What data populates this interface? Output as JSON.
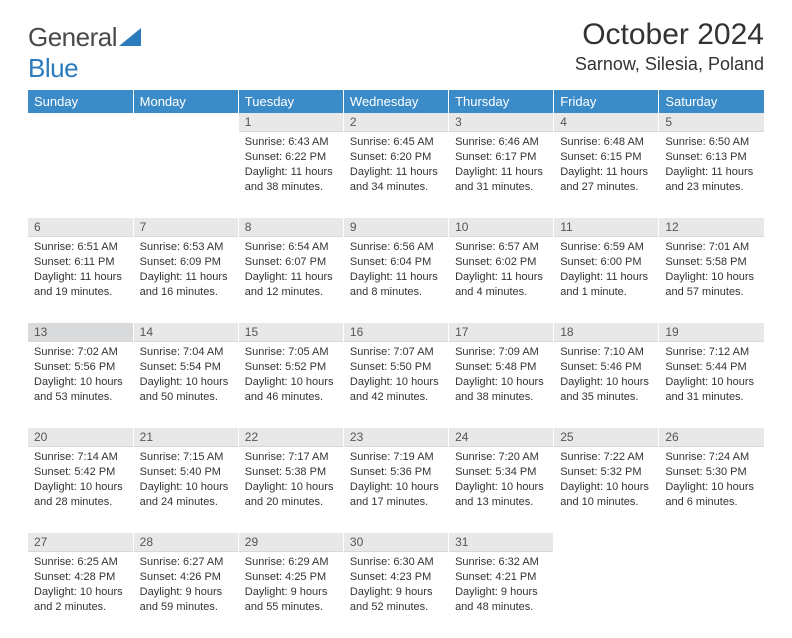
{
  "logo": {
    "part1": "General",
    "part2": "Blue"
  },
  "title": "October 2024",
  "location": "Sarnow, Silesia, Poland",
  "day_headers": [
    "Sunday",
    "Monday",
    "Tuesday",
    "Wednesday",
    "Thursday",
    "Friday",
    "Saturday"
  ],
  "header_bg": "#3b8bc8",
  "daynum_bg": "#e8e8e8",
  "daynum_bg_hl": "#d9dadb",
  "weeks": [
    [
      null,
      null,
      {
        "n": "1",
        "sr": "Sunrise: 6:43 AM",
        "ss": "Sunset: 6:22 PM",
        "dl": "Daylight: 11 hours and 38 minutes."
      },
      {
        "n": "2",
        "sr": "Sunrise: 6:45 AM",
        "ss": "Sunset: 6:20 PM",
        "dl": "Daylight: 11 hours and 34 minutes."
      },
      {
        "n": "3",
        "sr": "Sunrise: 6:46 AM",
        "ss": "Sunset: 6:17 PM",
        "dl": "Daylight: 11 hours and 31 minutes."
      },
      {
        "n": "4",
        "sr": "Sunrise: 6:48 AM",
        "ss": "Sunset: 6:15 PM",
        "dl": "Daylight: 11 hours and 27 minutes."
      },
      {
        "n": "5",
        "sr": "Sunrise: 6:50 AM",
        "ss": "Sunset: 6:13 PM",
        "dl": "Daylight: 11 hours and 23 minutes."
      }
    ],
    [
      {
        "n": "6",
        "sr": "Sunrise: 6:51 AM",
        "ss": "Sunset: 6:11 PM",
        "dl": "Daylight: 11 hours and 19 minutes."
      },
      {
        "n": "7",
        "sr": "Sunrise: 6:53 AM",
        "ss": "Sunset: 6:09 PM",
        "dl": "Daylight: 11 hours and 16 minutes."
      },
      {
        "n": "8",
        "sr": "Sunrise: 6:54 AM",
        "ss": "Sunset: 6:07 PM",
        "dl": "Daylight: 11 hours and 12 minutes."
      },
      {
        "n": "9",
        "sr": "Sunrise: 6:56 AM",
        "ss": "Sunset: 6:04 PM",
        "dl": "Daylight: 11 hours and 8 minutes."
      },
      {
        "n": "10",
        "sr": "Sunrise: 6:57 AM",
        "ss": "Sunset: 6:02 PM",
        "dl": "Daylight: 11 hours and 4 minutes."
      },
      {
        "n": "11",
        "sr": "Sunrise: 6:59 AM",
        "ss": "Sunset: 6:00 PM",
        "dl": "Daylight: 11 hours and 1 minute."
      },
      {
        "n": "12",
        "sr": "Sunrise: 7:01 AM",
        "ss": "Sunset: 5:58 PM",
        "dl": "Daylight: 10 hours and 57 minutes."
      }
    ],
    [
      {
        "n": "13",
        "sr": "Sunrise: 7:02 AM",
        "ss": "Sunset: 5:56 PM",
        "dl": "Daylight: 10 hours and 53 minutes.",
        "hl": true
      },
      {
        "n": "14",
        "sr": "Sunrise: 7:04 AM",
        "ss": "Sunset: 5:54 PM",
        "dl": "Daylight: 10 hours and 50 minutes."
      },
      {
        "n": "15",
        "sr": "Sunrise: 7:05 AM",
        "ss": "Sunset: 5:52 PM",
        "dl": "Daylight: 10 hours and 46 minutes."
      },
      {
        "n": "16",
        "sr": "Sunrise: 7:07 AM",
        "ss": "Sunset: 5:50 PM",
        "dl": "Daylight: 10 hours and 42 minutes."
      },
      {
        "n": "17",
        "sr": "Sunrise: 7:09 AM",
        "ss": "Sunset: 5:48 PM",
        "dl": "Daylight: 10 hours and 38 minutes."
      },
      {
        "n": "18",
        "sr": "Sunrise: 7:10 AM",
        "ss": "Sunset: 5:46 PM",
        "dl": "Daylight: 10 hours and 35 minutes."
      },
      {
        "n": "19",
        "sr": "Sunrise: 7:12 AM",
        "ss": "Sunset: 5:44 PM",
        "dl": "Daylight: 10 hours and 31 minutes."
      }
    ],
    [
      {
        "n": "20",
        "sr": "Sunrise: 7:14 AM",
        "ss": "Sunset: 5:42 PM",
        "dl": "Daylight: 10 hours and 28 minutes."
      },
      {
        "n": "21",
        "sr": "Sunrise: 7:15 AM",
        "ss": "Sunset: 5:40 PM",
        "dl": "Daylight: 10 hours and 24 minutes."
      },
      {
        "n": "22",
        "sr": "Sunrise: 7:17 AM",
        "ss": "Sunset: 5:38 PM",
        "dl": "Daylight: 10 hours and 20 minutes."
      },
      {
        "n": "23",
        "sr": "Sunrise: 7:19 AM",
        "ss": "Sunset: 5:36 PM",
        "dl": "Daylight: 10 hours and 17 minutes."
      },
      {
        "n": "24",
        "sr": "Sunrise: 7:20 AM",
        "ss": "Sunset: 5:34 PM",
        "dl": "Daylight: 10 hours and 13 minutes."
      },
      {
        "n": "25",
        "sr": "Sunrise: 7:22 AM",
        "ss": "Sunset: 5:32 PM",
        "dl": "Daylight: 10 hours and 10 minutes."
      },
      {
        "n": "26",
        "sr": "Sunrise: 7:24 AM",
        "ss": "Sunset: 5:30 PM",
        "dl": "Daylight: 10 hours and 6 minutes."
      }
    ],
    [
      {
        "n": "27",
        "sr": "Sunrise: 6:25 AM",
        "ss": "Sunset: 4:28 PM",
        "dl": "Daylight: 10 hours and 2 minutes."
      },
      {
        "n": "28",
        "sr": "Sunrise: 6:27 AM",
        "ss": "Sunset: 4:26 PM",
        "dl": "Daylight: 9 hours and 59 minutes."
      },
      {
        "n": "29",
        "sr": "Sunrise: 6:29 AM",
        "ss": "Sunset: 4:25 PM",
        "dl": "Daylight: 9 hours and 55 minutes."
      },
      {
        "n": "30",
        "sr": "Sunrise: 6:30 AM",
        "ss": "Sunset: 4:23 PM",
        "dl": "Daylight: 9 hours and 52 minutes."
      },
      {
        "n": "31",
        "sr": "Sunrise: 6:32 AM",
        "ss": "Sunset: 4:21 PM",
        "dl": "Daylight: 9 hours and 48 minutes."
      },
      null,
      null
    ]
  ]
}
